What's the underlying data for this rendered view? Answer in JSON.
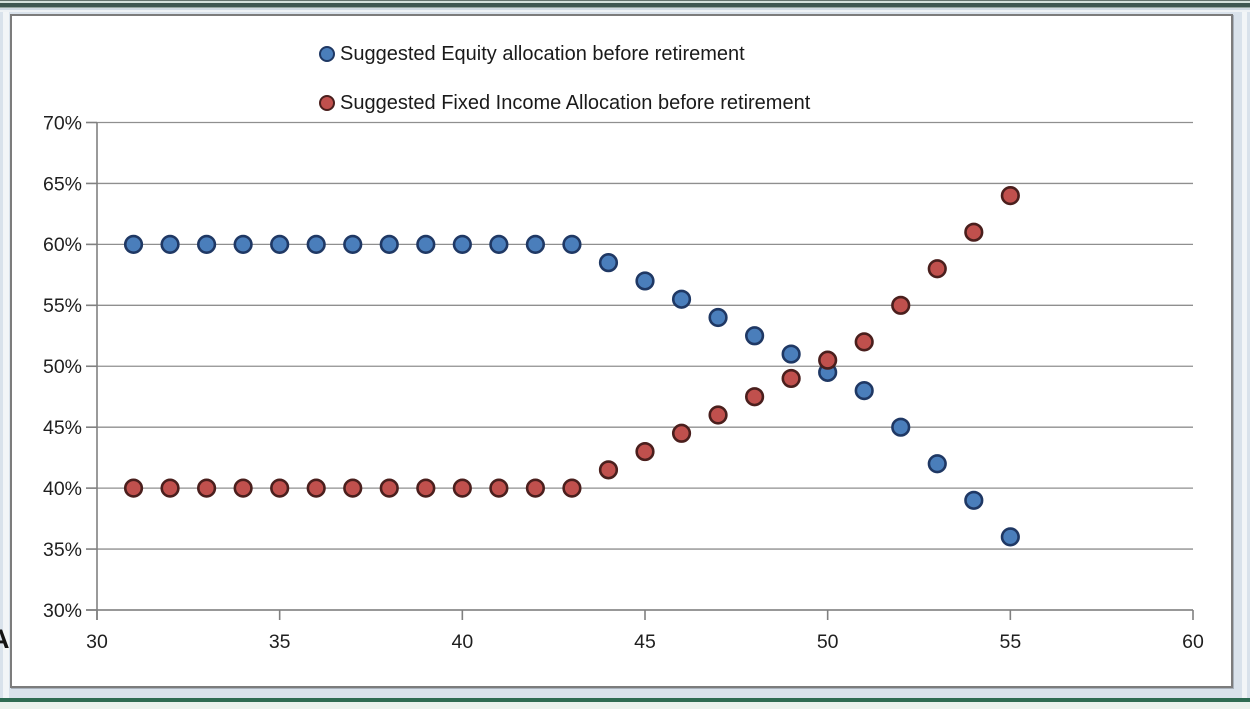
{
  "window": {
    "background_color": "#d9e2eb",
    "top_edge_dark_color": "#3d5751",
    "bottom_rule_color": "#2e6b52",
    "clipped_text_fragment": "A"
  },
  "chart_data": {
    "type": "scatter",
    "title": "",
    "xlabel": "",
    "ylabel": "",
    "grid": "horizontal",
    "legend_position": "top-center",
    "x_axis": {
      "min": 30,
      "max": 60,
      "ticks": [
        30,
        35,
        40,
        45,
        50,
        55,
        60
      ],
      "tick_suffix": ""
    },
    "y_axis": {
      "min": 30,
      "max": 70,
      "ticks": [
        70,
        65,
        60,
        55,
        50,
        45,
        40,
        35,
        30
      ],
      "tick_suffix": "%"
    },
    "x_values": [
      31,
      32,
      33,
      34,
      35,
      36,
      37,
      38,
      39,
      40,
      41,
      42,
      43,
      44,
      45,
      46,
      47,
      48,
      49,
      50,
      51,
      52,
      53,
      54,
      55
    ],
    "series": [
      {
        "name": "Suggested Equity allocation before retirement",
        "marker": "circle",
        "marker_fill": "#4a7ebb",
        "marker_border": "#1f3864",
        "values": [
          60,
          60,
          60,
          60,
          60,
          60,
          60,
          60,
          60,
          60,
          60,
          60,
          60,
          58.5,
          57,
          55.5,
          54,
          52.5,
          51,
          49.5,
          48,
          45,
          42,
          39,
          36
        ]
      },
      {
        "name": "Suggested Fixed Income Allocation before retirement",
        "marker": "circle",
        "marker_fill": "#c0504d",
        "marker_border": "#4a1f1d",
        "values": [
          40,
          40,
          40,
          40,
          40,
          40,
          40,
          40,
          40,
          40,
          40,
          40,
          40,
          41.5,
          43,
          44.5,
          46,
          47.5,
          49,
          50.5,
          52,
          55,
          58,
          61,
          64
        ]
      }
    ],
    "axis_color": "#808080",
    "grid_color": "#8f8f8f",
    "tick_label_color": "#1f1f1f"
  }
}
